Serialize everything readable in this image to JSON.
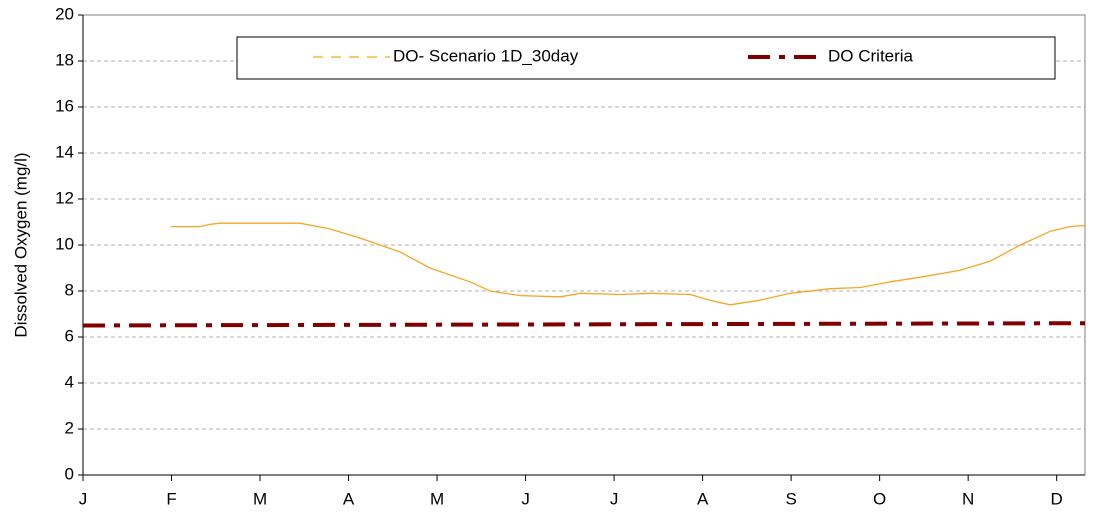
{
  "chart_data": {
    "type": "line",
    "y_label": "Dissolved Oxygen (mg/l)",
    "ylim": [
      0,
      20
    ],
    "yticks": [
      0,
      2,
      4,
      6,
      8,
      10,
      12,
      14,
      16,
      18,
      20
    ],
    "xlim": [
      0,
      11.32
    ],
    "xticks": [
      {
        "value": 0,
        "label": "J"
      },
      {
        "value": 1,
        "label": "F"
      },
      {
        "value": 2,
        "label": "M"
      },
      {
        "value": 3,
        "label": "A"
      },
      {
        "value": 4,
        "label": "M"
      },
      {
        "value": 5,
        "label": "J"
      },
      {
        "value": 6,
        "label": "J"
      },
      {
        "value": 7,
        "label": "A"
      },
      {
        "value": 8,
        "label": "S"
      },
      {
        "value": 9,
        "label": "O"
      },
      {
        "value": 10,
        "label": "N"
      },
      {
        "value": 11,
        "label": "D"
      }
    ],
    "grid": true,
    "legend": "top",
    "series": [
      {
        "name": "DO- Scenario 1D_30day",
        "color": "#f5a623",
        "style": "solid",
        "x": [
          0.99,
          1.32,
          1.44,
          1.55,
          2.45,
          2.79,
          3.13,
          3.58,
          3.92,
          4.37,
          4.6,
          4.94,
          5.39,
          5.62,
          6.07,
          6.41,
          6.86,
          7.08,
          7.31,
          7.65,
          7.99,
          8.44,
          8.78,
          9.12,
          9.46,
          9.91,
          10.25,
          10.59,
          10.93,
          11.15,
          11.32
        ],
        "values": [
          10.8,
          10.8,
          10.9,
          10.95,
          10.95,
          10.7,
          10.3,
          9.7,
          9.0,
          8.4,
          8.0,
          7.8,
          7.75,
          7.9,
          7.85,
          7.9,
          7.85,
          7.6,
          7.4,
          7.6,
          7.9,
          8.1,
          8.15,
          8.4,
          8.6,
          8.9,
          9.3,
          10.0,
          10.6,
          10.8,
          10.85
        ]
      },
      {
        "name": "DO Criteria",
        "color": "#800000",
        "style": "dashdot",
        "x": [
          0,
          11.32
        ],
        "values": [
          6.5,
          6.6
        ]
      }
    ]
  }
}
